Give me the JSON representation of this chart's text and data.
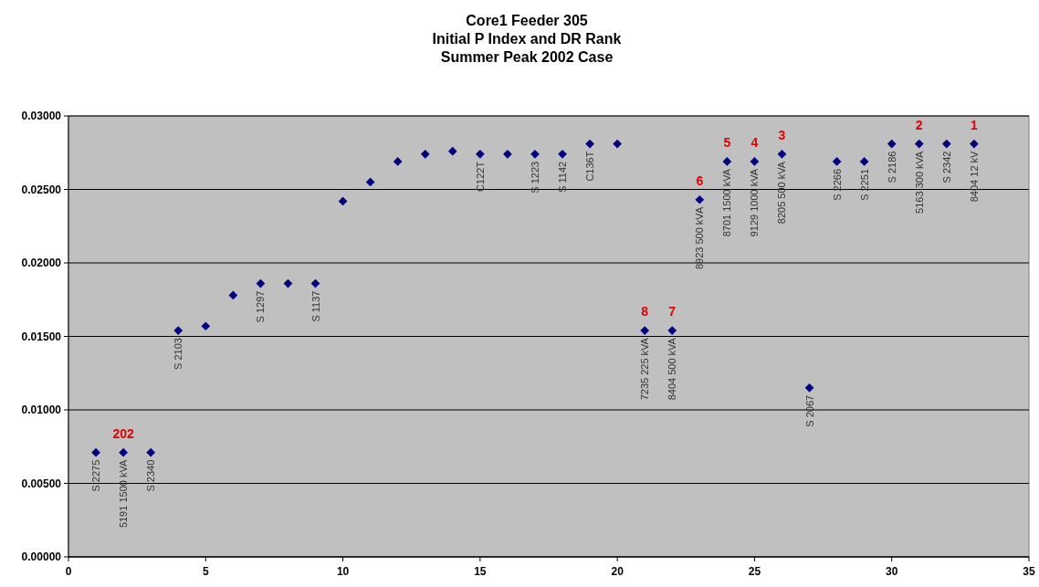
{
  "chart_data": {
    "type": "scatter",
    "title": "Core1 Feeder 305\nInitial P Index and DR Rank\nSummer Peak 2002 Case",
    "xlim": [
      0,
      35
    ],
    "xticks": [
      0,
      5,
      10,
      15,
      20,
      25,
      30,
      35
    ],
    "ylim": [
      0,
      0.03
    ],
    "yticks": [
      {
        "value": 0,
        "label": "0.00000"
      },
      {
        "value": 0.005,
        "label": "0.00500"
      },
      {
        "value": 0.01,
        "label": "0.01000"
      },
      {
        "value": 0.015,
        "label": "0.01500"
      },
      {
        "value": 0.02,
        "label": "0.02000"
      },
      {
        "value": 0.025,
        "label": "0.02500"
      },
      {
        "value": 0.03,
        "label": "0.03000"
      }
    ],
    "grid": "y",
    "marker": "diamond",
    "series": [
      {
        "color": "#000080",
        "x": [
          1,
          2,
          3,
          4,
          5,
          6,
          7,
          8,
          9,
          10,
          11,
          12,
          13,
          14,
          15,
          16,
          17,
          18,
          19,
          20,
          21,
          22,
          23,
          24,
          25,
          26,
          27,
          28,
          29,
          30,
          31,
          32,
          33
        ],
        "values": [
          0.0071,
          0.0071,
          0.0071,
          0.0154,
          0.0157,
          0.0178,
          0.0186,
          0.0186,
          0.0186,
          0.0242,
          0.0255,
          0.0269,
          0.0274,
          0.0276,
          0.0274,
          0.0274,
          0.0274,
          0.0274,
          0.0281,
          0.0281,
          0.0154,
          0.0154,
          0.0243,
          0.0269,
          0.0269,
          0.0274,
          0.0115,
          0.0269,
          0.0269,
          0.0281,
          0.0281,
          0.0281,
          0.0281
        ]
      }
    ],
    "annotations": [
      {
        "text": "202",
        "x": 2,
        "y": 0.0071
      },
      {
        "text": "8",
        "x": 21,
        "y": 0.0154
      },
      {
        "text": "7",
        "x": 22,
        "y": 0.0154
      },
      {
        "text": "6",
        "x": 23,
        "y": 0.0243
      },
      {
        "text": "5",
        "x": 24,
        "y": 0.0269
      },
      {
        "text": "4",
        "x": 25,
        "y": 0.0269
      },
      {
        "text": "3",
        "x": 26,
        "y": 0.0274
      },
      {
        "text": "2",
        "x": 31,
        "y": 0.0281
      },
      {
        "text": "1",
        "x": 33,
        "y": 0.0281
      },
      {
        "text": "S 2275",
        "x": 1,
        "y": 0.0071
      },
      {
        "text": "5191 1500 kVA",
        "x": 2,
        "y": 0.0071
      },
      {
        "text": "S 2340",
        "x": 3,
        "y": 0.0071
      },
      {
        "text": "S 2103",
        "x": 4,
        "y": 0.0154
      },
      {
        "text": "S 1297",
        "x": 7,
        "y": 0.0186
      },
      {
        "text": "S 1137",
        "x": 9,
        "y": 0.0186
      },
      {
        "text": "C122T",
        "x": 15,
        "y": 0.0274
      },
      {
        "text": "S 1223",
        "x": 17,
        "y": 0.0274
      },
      {
        "text": "S 1142",
        "x": 18,
        "y": 0.0274
      },
      {
        "text": "C136T",
        "x": 19,
        "y": 0.0281
      },
      {
        "text": "7235 225 kVA",
        "x": 21,
        "y": 0.0154
      },
      {
        "text": "8404 500 kVA",
        "x": 22,
        "y": 0.0154
      },
      {
        "text": "8923 500 kVA",
        "x": 23,
        "y": 0.0243
      },
      {
        "text": "8701 1500 kVA",
        "x": 24,
        "y": 0.0269
      },
      {
        "text": "9129 1000 kVA",
        "x": 25,
        "y": 0.0269
      },
      {
        "text": "8205 500 kVA",
        "x": 26,
        "y": 0.0274
      },
      {
        "text": "S 2067",
        "x": 27,
        "y": 0.0115
      },
      {
        "text": "S 2266",
        "x": 28,
        "y": 0.0269
      },
      {
        "text": "S 2251",
        "x": 29,
        "y": 0.0269
      },
      {
        "text": "S 2186",
        "x": 30,
        "y": 0.0281
      },
      {
        "text": "5163 300 kVA",
        "x": 31,
        "y": 0.0281
      },
      {
        "text": "S 2342",
        "x": 32,
        "y": 0.0281
      },
      {
        "text": "8404 12 kV",
        "x": 33,
        "y": 0.0281
      }
    ]
  }
}
